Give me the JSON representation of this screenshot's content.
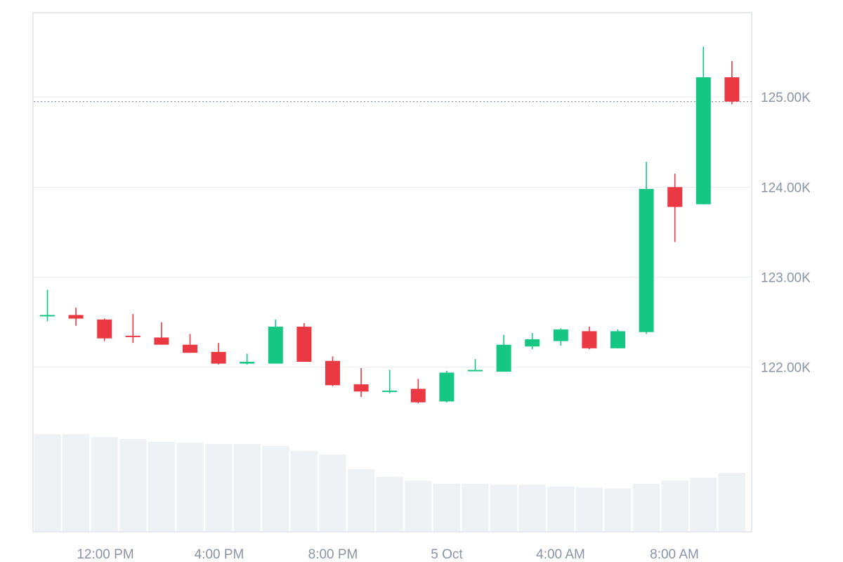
{
  "chart_data": {
    "type": "candlestick",
    "x_ticks": [
      "12:00 PM",
      "4:00 PM",
      "8:00 PM",
      "5 Oct",
      "4:00 AM",
      "8:00 AM"
    ],
    "y_ticks": [
      "122.00K",
      "123.00K",
      "124.00K",
      "125.00K"
    ],
    "y_tick_values": [
      122000,
      123000,
      124000,
      125000
    ],
    "ylim": [
      120180,
      125930
    ],
    "reference_line": 124950,
    "grid": "horizontal",
    "candles": [
      {
        "o": 122570,
        "h": 122860,
        "l": 122510,
        "c": 122580
      },
      {
        "o": 122580,
        "h": 122660,
        "l": 122460,
        "c": 122540
      },
      {
        "o": 122530,
        "h": 122540,
        "l": 122290,
        "c": 122320
      },
      {
        "o": 122350,
        "h": 122590,
        "l": 122270,
        "c": 122340
      },
      {
        "o": 122330,
        "h": 122500,
        "l": 122250,
        "c": 122250
      },
      {
        "o": 122250,
        "h": 122370,
        "l": 122160,
        "c": 122160
      },
      {
        "o": 122170,
        "h": 122270,
        "l": 122030,
        "c": 122040
      },
      {
        "o": 122040,
        "h": 122150,
        "l": 122030,
        "c": 122060
      },
      {
        "o": 122040,
        "h": 122530,
        "l": 122040,
        "c": 122450
      },
      {
        "o": 122450,
        "h": 122490,
        "l": 122060,
        "c": 122060
      },
      {
        "o": 122070,
        "h": 122120,
        "l": 121790,
        "c": 121800
      },
      {
        "o": 121810,
        "h": 121990,
        "l": 121670,
        "c": 121730
      },
      {
        "o": 121730,
        "h": 121970,
        "l": 121710,
        "c": 121740
      },
      {
        "o": 121760,
        "h": 121870,
        "l": 121600,
        "c": 121610
      },
      {
        "o": 121620,
        "h": 121960,
        "l": 121610,
        "c": 121940
      },
      {
        "o": 121960,
        "h": 122090,
        "l": 121960,
        "c": 121970
      },
      {
        "o": 121950,
        "h": 122360,
        "l": 121950,
        "c": 122250
      },
      {
        "o": 122230,
        "h": 122380,
        "l": 122200,
        "c": 122310
      },
      {
        "o": 122290,
        "h": 122430,
        "l": 122240,
        "c": 122420
      },
      {
        "o": 122400,
        "h": 122450,
        "l": 122200,
        "c": 122210
      },
      {
        "o": 122210,
        "h": 122420,
        "l": 122210,
        "c": 122400
      },
      {
        "o": 122390,
        "h": 124280,
        "l": 122370,
        "c": 123980
      },
      {
        "o": 124000,
        "h": 124150,
        "l": 123390,
        "c": 123780
      },
      {
        "o": 123810,
        "h": 125560,
        "l": 123810,
        "c": 125220
      },
      {
        "o": 125220,
        "h": 125400,
        "l": 124920,
        "c": 124950
      }
    ],
    "volume": [
      1.0,
      1.0,
      0.97,
      0.95,
      0.92,
      0.91,
      0.9,
      0.9,
      0.88,
      0.83,
      0.79,
      0.64,
      0.56,
      0.52,
      0.49,
      0.49,
      0.48,
      0.48,
      0.46,
      0.45,
      0.44,
      0.49,
      0.52,
      0.55,
      0.6
    ],
    "colors": {
      "up": "#16c784",
      "down": "#ea3943",
      "volume": "#eff2f5",
      "grid": "#eceef2",
      "border": "#dfe3e8",
      "tick_label": "#8a94a6",
      "reference_line": "#8a94a6"
    }
  }
}
